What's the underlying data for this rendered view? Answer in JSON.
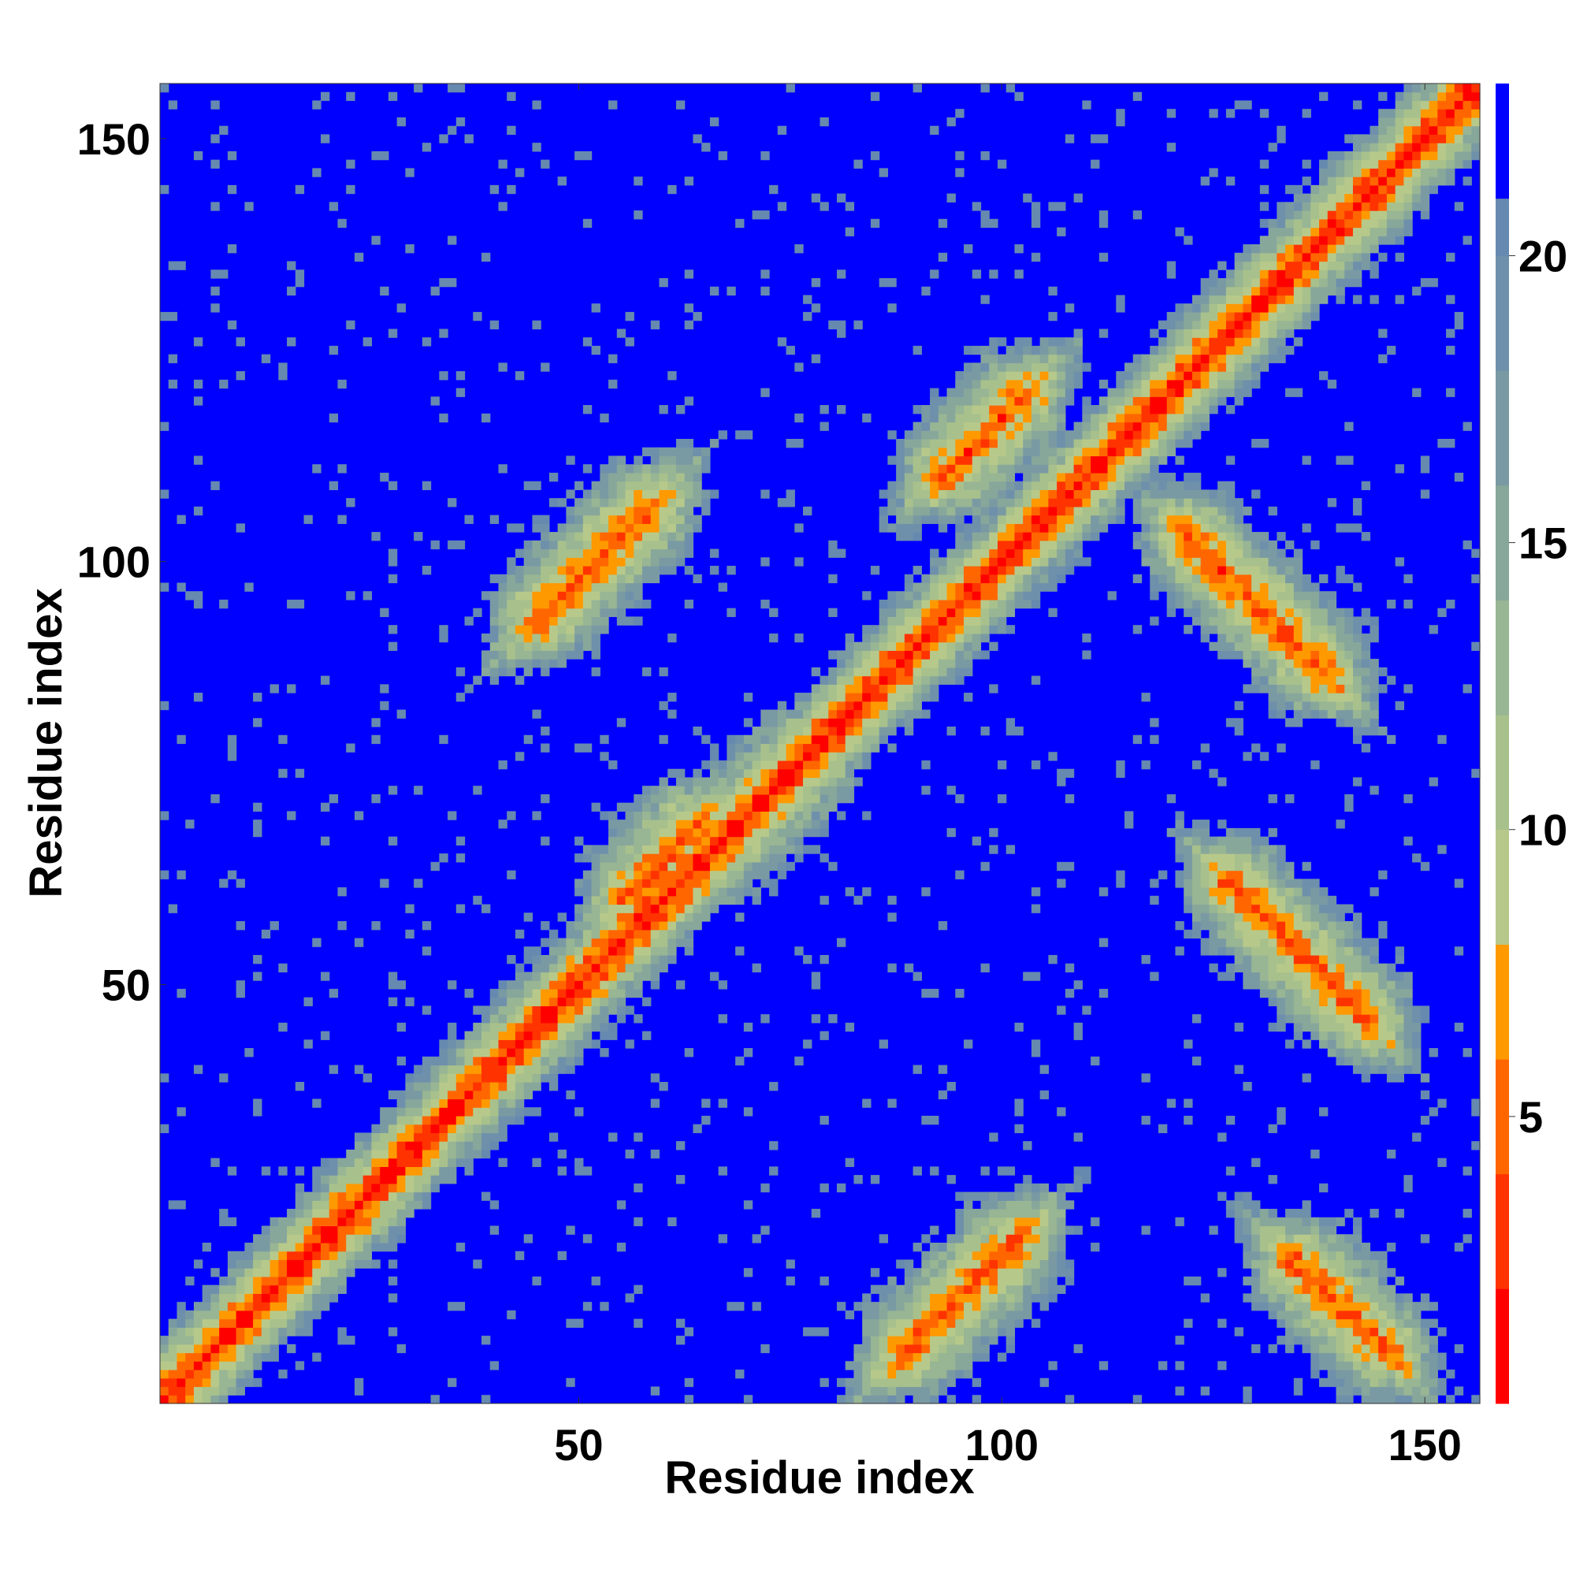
{
  "chart_data": {
    "type": "heatmap",
    "title": "",
    "xlabel": "Residue index",
    "ylabel": "Residue index",
    "xlim": [
      1,
      156
    ],
    "ylim": [
      1,
      156
    ],
    "x_ticks": [
      50,
      100,
      150
    ],
    "y_ticks": [
      50,
      100,
      150
    ],
    "colorbar": {
      "ticks": [
        5,
        10,
        15,
        20
      ],
      "range": [
        0,
        23
      ],
      "levels": [
        {
          "from": 0,
          "to": 2,
          "color": "#ff0000"
        },
        {
          "from": 2,
          "to": 4,
          "color": "#ff3300"
        },
        {
          "from": 4,
          "to": 6,
          "color": "#ff6600"
        },
        {
          "from": 6,
          "to": 8,
          "color": "#ff9900"
        },
        {
          "from": 8,
          "to": 10,
          "color": "#b7c98a"
        },
        {
          "from": 10,
          "to": 12,
          "color": "#a8c18c"
        },
        {
          "from": 12,
          "to": 14,
          "color": "#98b594"
        },
        {
          "from": 14,
          "to": 16,
          "color": "#88a79b"
        },
        {
          "from": 16,
          "to": 18,
          "color": "#7a9aa3"
        },
        {
          "from": 18,
          "to": 20,
          "color": "#6f90ab"
        },
        {
          "from": 20,
          "to": 21,
          "color": "#6689b0"
        },
        {
          "from": 21,
          "to": 23,
          "color": "#0000ff"
        }
      ]
    },
    "contact_features": [
      {
        "kind": "diagonal",
        "from": 1,
        "to": 156
      },
      {
        "kind": "antiparallel",
        "center": [
          71,
          71
        ],
        "half_length": 10
      },
      {
        "kind": "antiparallel",
        "center": [
          60,
          65
        ],
        "half_length": 6
      },
      {
        "kind": "antiparallel",
        "center": [
          50,
          98
        ],
        "half_length": 7
      },
      {
        "kind": "antiparallel",
        "center": [
          52,
          100
        ],
        "half_length": 10
      },
      {
        "kind": "antiparallel",
        "center": [
          95,
          13
        ],
        "half_length": 10
      },
      {
        "kind": "antiparallel",
        "center": [
          98,
          115
        ],
        "half_length": 7
      },
      {
        "kind": "parallel",
        "center": [
          130,
          95
        ],
        "half_length": 12
      },
      {
        "kind": "parallel",
        "center": [
          135,
          54
        ],
        "half_length": 12
      },
      {
        "kind": "parallel",
        "center": [
          140,
          12
        ],
        "half_length": 8
      }
    ]
  }
}
